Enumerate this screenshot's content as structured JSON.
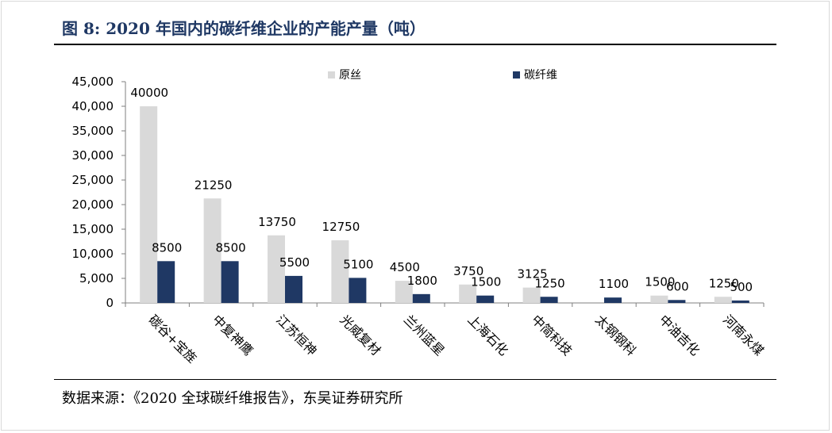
{
  "figure_title": "图 8:  2020 年国内的碳纤维企业的产能产量（吨）",
  "source": "数据来源：《2020 全球碳纤维报告》，东吴证券研究所",
  "colors": {
    "series1": "#d9d9d9",
    "series2": "#1f3864",
    "title": "#1f3864"
  },
  "chart_data": {
    "type": "bar",
    "categories": [
      "碳谷+宝旌",
      "中复神鹰",
      "江苏恒神",
      "光威复材",
      "兰州蓝星",
      "上海石化",
      "中简科技",
      "太钢钢科",
      "中油吉化",
      "河南永煤"
    ],
    "series": [
      {
        "name": "原丝",
        "values": [
          40000,
          21250,
          13750,
          12750,
          4500,
          3750,
          3125,
          null,
          1500,
          1250
        ],
        "labels": [
          "40000",
          "21250",
          "13750",
          "12750",
          "4500",
          "3750",
          "3125",
          "",
          "1500",
          "1250"
        ]
      },
      {
        "name": "碳纤维",
        "values": [
          8500,
          8500,
          5500,
          5100,
          1800,
          1500,
          1250,
          1100,
          600,
          500
        ],
        "labels": [
          "8500",
          "8500",
          "5500",
          "5100",
          "1800",
          "1500",
          "1250",
          "1100",
          "600",
          "500"
        ]
      }
    ],
    "yticks": [
      "0",
      "5,000",
      "10,000",
      "15,000",
      "20,000",
      "25,000",
      "30,000",
      "35,000",
      "40,000",
      "45,000"
    ],
    "ylim": [
      0,
      45000
    ],
    "legend_position": "top",
    "grid": false
  }
}
